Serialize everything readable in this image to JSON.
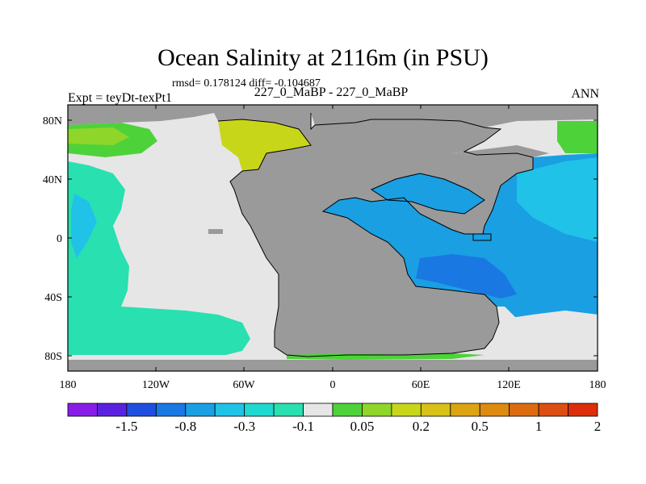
{
  "title": "Ocean Salinity at 2116m (in PSU)",
  "stats": "rmsd= 0.178124 diff= -0.104687",
  "left_label": "Expt = teyDt-texPt1",
  "center_label": "227_0_MaBP - 227_0_MaBP",
  "right_label": "ANN",
  "colors": {
    "land": "#9a9a9a",
    "missing": "#e6e6e6",
    "outline": "#000000"
  },
  "chart_data": {
    "type": "heatmap",
    "x_ticks": [
      "180",
      "120W",
      "60W",
      "0",
      "60E",
      "120E",
      "180"
    ],
    "y_ticks": [
      "80N",
      "40N",
      "0",
      "40S",
      "80S"
    ],
    "colorbar": {
      "colors": [
        "#8a1ce8",
        "#5a22e0",
        "#1f4fe0",
        "#1a78e3",
        "#1a9fe3",
        "#20c2e8",
        "#1fd8d0",
        "#29e0b0",
        "#e6e6e6",
        "#4ed23a",
        "#8fd62a",
        "#c8d61a",
        "#d8c21a",
        "#dca412",
        "#dc8a10",
        "#dc6c12",
        "#dc4e12",
        "#dc2e0a"
      ],
      "labels": [
        "-1.5",
        "-0.8",
        "-0.3",
        "-0.1",
        "0.05",
        "0.2",
        "0.5",
        "1",
        "2"
      ]
    }
  }
}
